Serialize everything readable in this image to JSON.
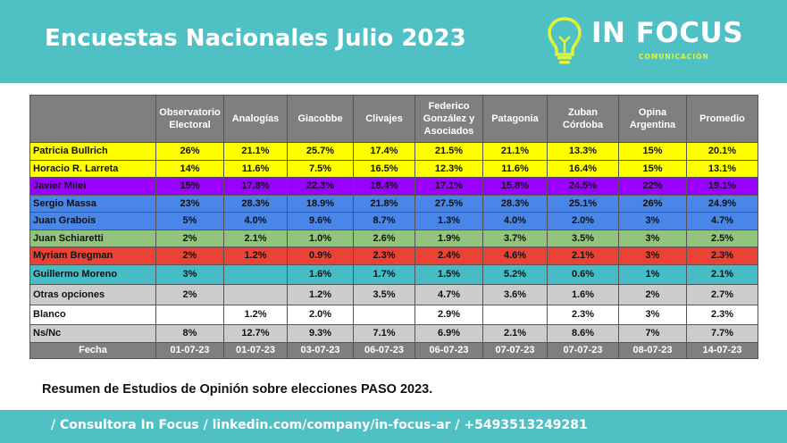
{
  "header": {
    "title": "Encuestas Nacionales Julio 2023",
    "logo_text": "IN FOCUS",
    "logo_sub": "COMUNICACIÓN",
    "colors": {
      "band": "#4fc0c3",
      "accent": "#e3f53a"
    }
  },
  "table": {
    "columns": [
      "",
      "Observatorio Electoral",
      "Analogías",
      "Giacobbe",
      "Clivajes",
      "Federico González y Asociados",
      "Patagonia",
      "Zuban Córdoba",
      "Opina Argentina",
      "Promedio"
    ],
    "rows": [
      {
        "name": "Patricia Bullrich",
        "color": "#ffff00",
        "values": [
          "26%",
          "21.1%",
          "25.7%",
          "17.4%",
          "21.5%",
          "21.1%",
          "13.3%",
          "15%",
          "20.1%"
        ]
      },
      {
        "name": "Horacio R. Larreta",
        "color": "#ffff00",
        "values": [
          "14%",
          "11.6%",
          "7.5%",
          "16.5%",
          "12.3%",
          "11.6%",
          "16.4%",
          "15%",
          "13.1%"
        ]
      },
      {
        "name": "Javier Milei",
        "color": "#9900ff",
        "values": [
          "15%",
          "17.8%",
          "22.3%",
          "18.4%",
          "17.1%",
          "15.8%",
          "24.5%",
          "22%",
          "19.1%"
        ]
      },
      {
        "name": "Sergio Massa",
        "color": "#4a86e8",
        "values": [
          "23%",
          "28.3%",
          "18.9%",
          "21.8%",
          "27.5%",
          "28.3%",
          "25.1%",
          "26%",
          "24.9%"
        ]
      },
      {
        "name": "Juan Grabois",
        "color": "#4a86e8",
        "values": [
          "5%",
          "4.0%",
          "9.6%",
          "8.7%",
          "1.3%",
          "4.0%",
          "2.0%",
          "3%",
          "4.7%"
        ]
      },
      {
        "name": "Juan Schiaretti",
        "color": "#93c47d",
        "values": [
          "2%",
          "2.1%",
          "1.0%",
          "2.6%",
          "1.9%",
          "3.7%",
          "3.5%",
          "3%",
          "2.5%"
        ]
      },
      {
        "name": "Myriam Bregman",
        "color": "#ea4335",
        "values": [
          "2%",
          "1.2%",
          "0.9%",
          "2.3%",
          "2.4%",
          "4.6%",
          "2.1%",
          "3%",
          "2.3%"
        ]
      },
      {
        "name": "Guillermo Moreno",
        "color": "#46bdc6",
        "tall": true,
        "values": [
          "3%",
          "",
          "1.6%",
          "1.7%",
          "1.5%",
          "5.2%",
          "0.6%",
          "1%",
          "2.1%"
        ]
      },
      {
        "name": "Otras opciones",
        "color": "#cccccc",
        "tall": true,
        "values": [
          "2%",
          "",
          "1.2%",
          "3.5%",
          "4.7%",
          "3.6%",
          "1.6%",
          "2%",
          "2.7%"
        ]
      },
      {
        "name": "Blanco",
        "color": "#ffffff",
        "tall": true,
        "values": [
          "",
          "1.2%",
          "2.0%",
          "",
          "2.9%",
          "",
          "2.3%",
          "3%",
          "2.3%"
        ]
      },
      {
        "name": "Ns/Nc",
        "color": "#cccccc",
        "values": [
          "8%",
          "12.7%",
          "9.3%",
          "7.1%",
          "6.9%",
          "2.1%",
          "8.6%",
          "7%",
          "7.7%"
        ]
      }
    ],
    "fecha": {
      "label": "Fecha",
      "values": [
        "01-07-23",
        "01-07-23",
        "03-07-23",
        "06-07-23",
        "06-07-23",
        "07-07-23",
        "07-07-23",
        "08-07-23",
        "14-07-23"
      ]
    }
  },
  "summary": "Resumen de Estudios de Opinión sobre elecciones PASO 2023.",
  "footer": "/ Consultora In Focus / linkedin.com/company/in-focus-ar / +5493513249281"
}
